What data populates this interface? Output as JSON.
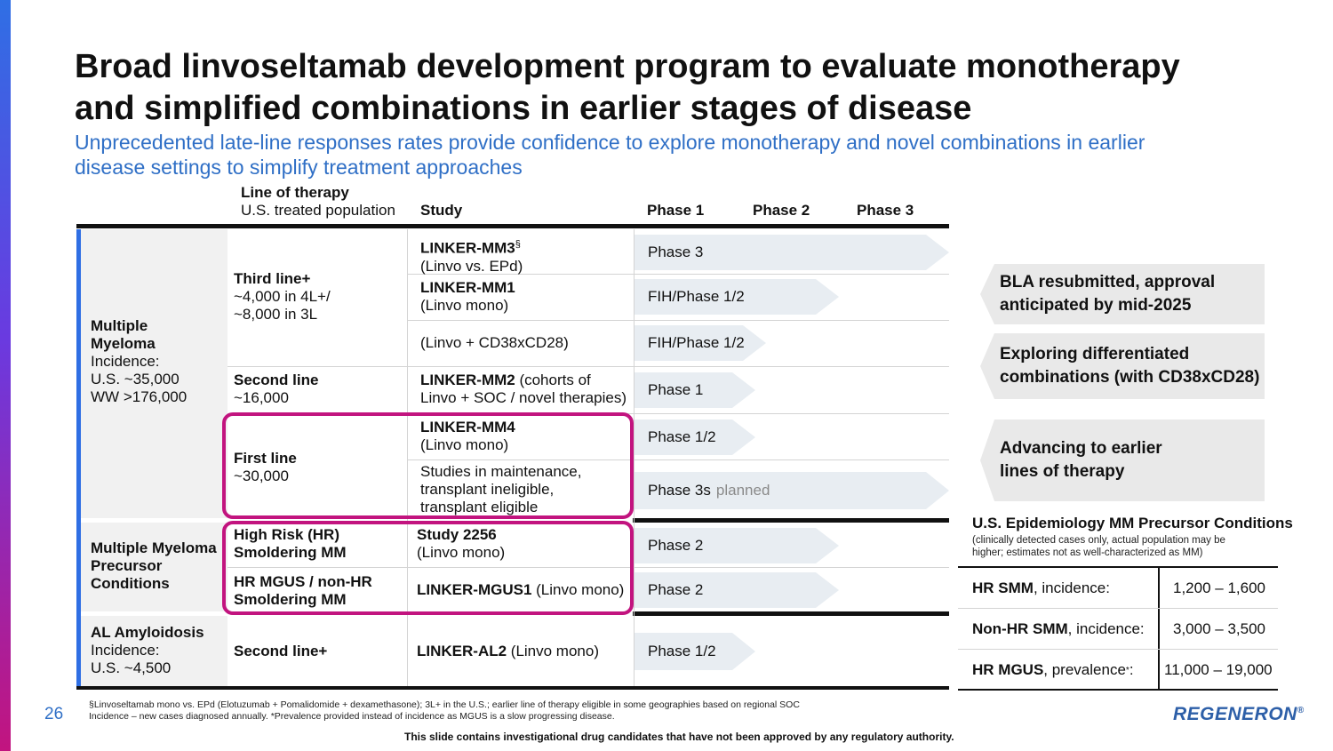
{
  "slide": {
    "title_line1": "Broad linvoseltamab development program to evaluate monotherapy",
    "title_line2": "and simplified combinations in earlier stages of disease",
    "subtitle_line1": "Unprecedented late-line responses rates provide confidence to explore monotherapy and novel combinations in earlier",
    "subtitle_line2": "disease settings to simplify treatment approaches",
    "page_number": "26",
    "logo_text": "REGENERON",
    "logo_mark": "®",
    "disclaimer": "This slide contains investigational drug candidates that have not been approved by any regulatory authority.",
    "footnote_line1": "§Linvoseltamab mono vs. EPd (Elotuzumab + Pomalidomide + dexamethasone); 3L+ in the U.S.; earlier line of therapy eligible in some geographies based on regional SOC",
    "footnote_line2": "Incidence – new cases diagnosed annually. *Prevalence provided instead of incidence as MGUS is a slow progressing disease."
  },
  "headers": {
    "line_of_therapy": "Line of therapy",
    "population": "U.S. treated population",
    "study": "Study",
    "phase1": "Phase 1",
    "phase2": "Phase 2",
    "phase3": "Phase 3"
  },
  "diseases": {
    "mm_name1": "Multiple",
    "mm_name2": "Myeloma",
    "mm_inc1": "Incidence:",
    "mm_inc2": "U.S. ~35,000",
    "mm_inc3": "WW >176,000",
    "pre_name1": "Multiple Myeloma",
    "pre_name2": "Precursor",
    "pre_name3": "Conditions",
    "al_name": "AL Amyloidosis",
    "al_inc1": "Incidence:",
    "al_inc2": "U.S. ~4,500"
  },
  "lines": {
    "third_title": "Third line+",
    "third_l1": "~4,000 in 4L+/",
    "third_l2": "~8,000 in 3L",
    "second_title": "Second line",
    "second_l1": "~16,000",
    "first_title": "First line",
    "first_l1": "~30,000",
    "hr_smm1": "High Risk (HR)",
    "hr_smm2": "Smoldering MM",
    "mgus1": "HR MGUS / non-HR",
    "mgus2": "Smoldering MM",
    "al_line": "Second line+"
  },
  "studies": {
    "mm3_name": "LINKER-MM3",
    "mm3_sup": "§",
    "mm3_sub": "(Linvo vs. EPd)",
    "mm1_name": "LINKER-MM1",
    "mm1_sub": "(Linvo mono)",
    "combo": "(Linvo + CD38xCD28)",
    "mm2_name": "LINKER-MM2",
    "mm2_rest": " (cohorts of",
    "mm2_sub": "Linvo + SOC / novel therapies)",
    "mm4_name": "LINKER-MM4",
    "mm4_sub": "(Linvo mono)",
    "maint1": "Studies in maintenance,",
    "maint2": "transplant ineligible,",
    "maint3": "transplant eligible",
    "s2256_name": "Study 2256",
    "s2256_sub": "(Linvo mono)",
    "mgus_name": "LINKER-MGUS1",
    "mgus_rest": " (Linvo mono)",
    "al_name": "LINKER-AL2",
    "al_rest": " (Linvo mono)"
  },
  "phases": {
    "mm3": "Phase 3",
    "mm1": "FIH/Phase 1/2",
    "combo": "FIH/Phase 1/2",
    "mm2": "Phase 1",
    "mm4": "Phase 1/2",
    "maint": "Phase 3s",
    "maint_suffix": "planned",
    "s2256": "Phase 2",
    "mgus": "Phase 2",
    "al": "Phase 1/2"
  },
  "callouts": {
    "bla1": "BLA resubmitted, approval",
    "bla2": "anticipated by mid-2025",
    "explore1": "Exploring differentiated",
    "explore2": "combinations (with CD38xCD28)",
    "advance1": "Advancing to earlier",
    "advance2": "lines of therapy"
  },
  "epidemiology": {
    "title": "U.S. Epidemiology MM Precursor Conditions",
    "note1": "(clinically detected cases only, actual population may be",
    "note2": "higher; estimates not as well-characterized as MM)",
    "rows": [
      {
        "label_bold": "HR SMM",
        "label_rest": ", incidence:",
        "value": "1,200 – 1,600"
      },
      {
        "label_bold": "Non-HR SMM",
        "label_rest": ", incidence:",
        "value": "3,000 – 3,500"
      },
      {
        "label_bold": "HR MGUS",
        "label_rest": ", prevalence",
        "label_sup": "*",
        "label_end": ":",
        "value": "11,000 – 19,000"
      }
    ]
  },
  "colors": {
    "accent_blue": "#2f6fe4",
    "highlight_magenta": "#c2147f",
    "subtitle_blue": "#2f6fc6"
  }
}
